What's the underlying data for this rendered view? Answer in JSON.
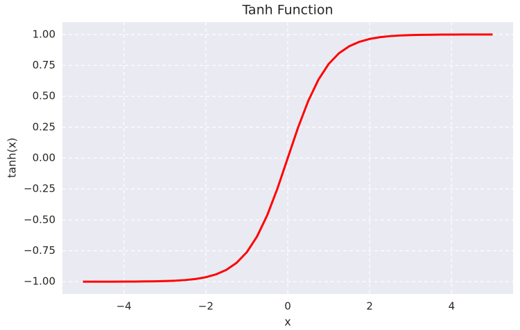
{
  "chart_data": {
    "type": "line",
    "title": "Tanh Function",
    "x_label": "x",
    "y_label": "tanh(x)",
    "x": [
      -5,
      -4.75,
      -4.5,
      -4.25,
      -4,
      -3.75,
      -3.5,
      -3.25,
      -3,
      -2.75,
      -2.5,
      -2.25,
      -2,
      -1.75,
      -1.5,
      -1.25,
      -1,
      -0.75,
      -0.5,
      -0.25,
      0,
      0.25,
      0.5,
      0.75,
      1,
      1.25,
      1.5,
      1.75,
      2,
      2.25,
      2.5,
      2.75,
      3,
      3.25,
      3.5,
      3.75,
      4,
      4.25,
      4.5,
      4.75,
      5
    ],
    "series": [
      {
        "color": "#ff0000",
        "values": [
          -1,
          -1,
          -1,
          -1,
          -0.999,
          -0.999,
          -0.998,
          -0.997,
          -0.995,
          -0.992,
          -0.987,
          -0.978,
          -0.964,
          -0.941,
          -0.905,
          -0.848,
          -0.762,
          -0.635,
          -0.462,
          -0.245,
          0,
          0.245,
          0.462,
          0.635,
          0.762,
          0.848,
          0.905,
          0.941,
          0.964,
          0.978,
          0.987,
          0.992,
          0.995,
          0.997,
          0.998,
          0.999,
          0.999,
          1,
          1,
          1,
          1
        ]
      }
    ],
    "xlim": [
      -5.5,
      5.5
    ],
    "ylim": [
      -1.1,
      1.1
    ],
    "xticks": [
      {
        "value": -4,
        "label": "−4"
      },
      {
        "value": -2,
        "label": "−2"
      },
      0,
      2,
      4
    ],
    "yticks": [
      {
        "value": -1,
        "label": "−1.00"
      },
      {
        "value": -0.75,
        "label": "−0.75"
      },
      {
        "value": -0.5,
        "label": "−0.50"
      },
      {
        "value": -0.25,
        "label": "−0.25"
      },
      {
        "value": 0,
        "label": "0.00"
      },
      {
        "value": 0.25,
        "label": "0.25"
      },
      {
        "value": 0.5,
        "label": "0.50"
      },
      {
        "value": 0.75,
        "label": "0.75"
      },
      {
        "value": 1,
        "label": "1.00"
      }
    ],
    "grid": true,
    "background": "#eaeaf2"
  }
}
